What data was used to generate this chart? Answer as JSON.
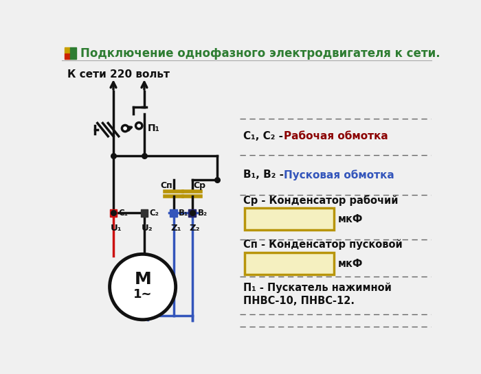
{
  "title": "Подключение однофазного электродвигателя к сети.",
  "title_color": "#2e7d32",
  "bg_color": "#f0f0f0",
  "subtitle": "К сети 220 вольт",
  "leg1_prefix": "С₁, С₂ - ",
  "leg1_suffix": "Рабочая обмотка",
  "leg1_suffix_color": "#8b0000",
  "leg2_prefix": "В₁, В₂ - ",
  "leg2_suffix": "Пусковая обмотка",
  "leg2_suffix_color": "#3355bb",
  "leg3": "Ср - Конденсатор рабочий",
  "leg4": "мкФ",
  "leg5": "Сп - Конденсатор пусковой",
  "leg6": "мкФ",
  "leg7a": "П₁ - Пускатель нажимной",
  "leg7b": "ПНВС-10, ПНВС-12.",
  "black": "#111111",
  "red_wire": "#cc1111",
  "blue_wire": "#3355bb",
  "C1_color": "#cc1111",
  "C2_color": "#333333",
  "B1_color": "#3355bb",
  "B2_color": "#222266",
  "cap_color": "#b8950a",
  "rect_fill": "#f5f0c0",
  "rect_edge": "#b8950a",
  "dash_color": "#666666",
  "sq_yellow": "#c8a000",
  "sq_green": "#2e7d32",
  "sq_red": "#cc2200"
}
